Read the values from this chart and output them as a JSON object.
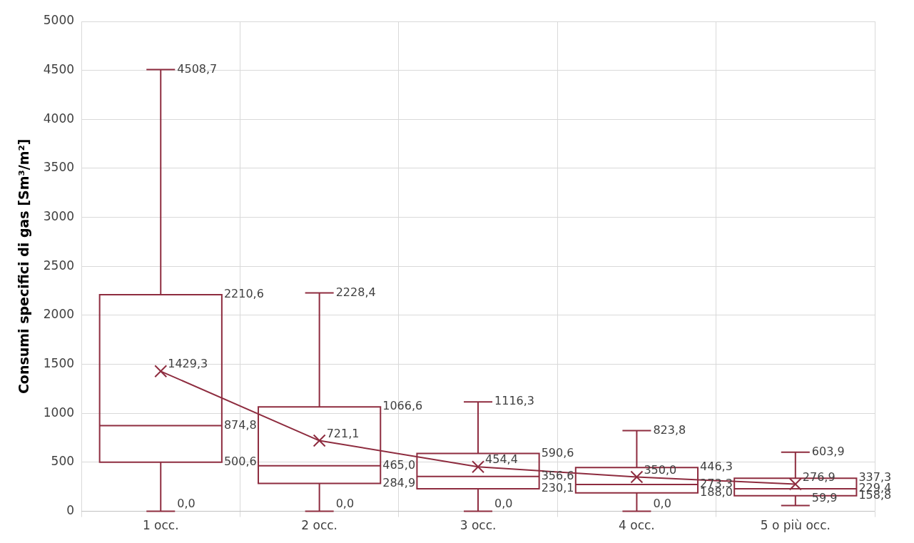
{
  "chart_data": {
    "type": "box",
    "ylabel": "Consumi specifici di gas [Sm³/m²]",
    "categories": [
      "1 occ.",
      "2 occ.",
      "3 occ.",
      "4 occ.",
      "5 o più occ."
    ],
    "boxes": [
      {
        "low": 0.0,
        "q1": 500.6,
        "median": 874.8,
        "q3": 2210.6,
        "high": 4508.7,
        "mean": 1429.3
      },
      {
        "low": 0.0,
        "q1": 284.9,
        "median": 465.0,
        "q3": 1066.6,
        "high": 2228.4,
        "mean": 721.1
      },
      {
        "low": 0.0,
        "q1": 230.1,
        "median": 356.6,
        "q3": 590.6,
        "high": 1116.3,
        "mean": 454.4
      },
      {
        "low": 0.0,
        "q1": 188.0,
        "median": 273.3,
        "q3": 446.3,
        "high": 823.8,
        "mean": 350.0
      },
      {
        "low": 59.9,
        "q1": 158.8,
        "median": 229.4,
        "q3": 337.3,
        "high": 603.9,
        "mean": 276.9
      }
    ],
    "series": [
      {
        "type": "line",
        "color": "#8e2c3f",
        "values": [
          1429.3,
          721.1,
          454.4,
          350.0,
          276.9
        ],
        "value_labels": [
          "1429,3",
          "721,1",
          "454,4",
          "350,0",
          "276,9"
        ]
      }
    ],
    "annotations": [
      "4508,7",
      "2210,6",
      "874,8",
      "500,6",
      "0,0",
      "2228,4",
      "1066,6",
      "465,0",
      "284,9",
      "0,0",
      "1116,3",
      "590,6",
      "356,6",
      "230,1",
      "0,0",
      "823,8",
      "446,3",
      "273,3",
      "188,0",
      "0,0",
      "603,9",
      "337,3",
      "229,4",
      "158,8",
      "59,9"
    ],
    "color": "#8e2c3f",
    "ylim": [
      0,
      5000
    ],
    "yticks": [
      0,
      500,
      1000,
      1500,
      2000,
      2500,
      3000,
      3500,
      4000,
      4500,
      5000
    ],
    "grid": true
  }
}
